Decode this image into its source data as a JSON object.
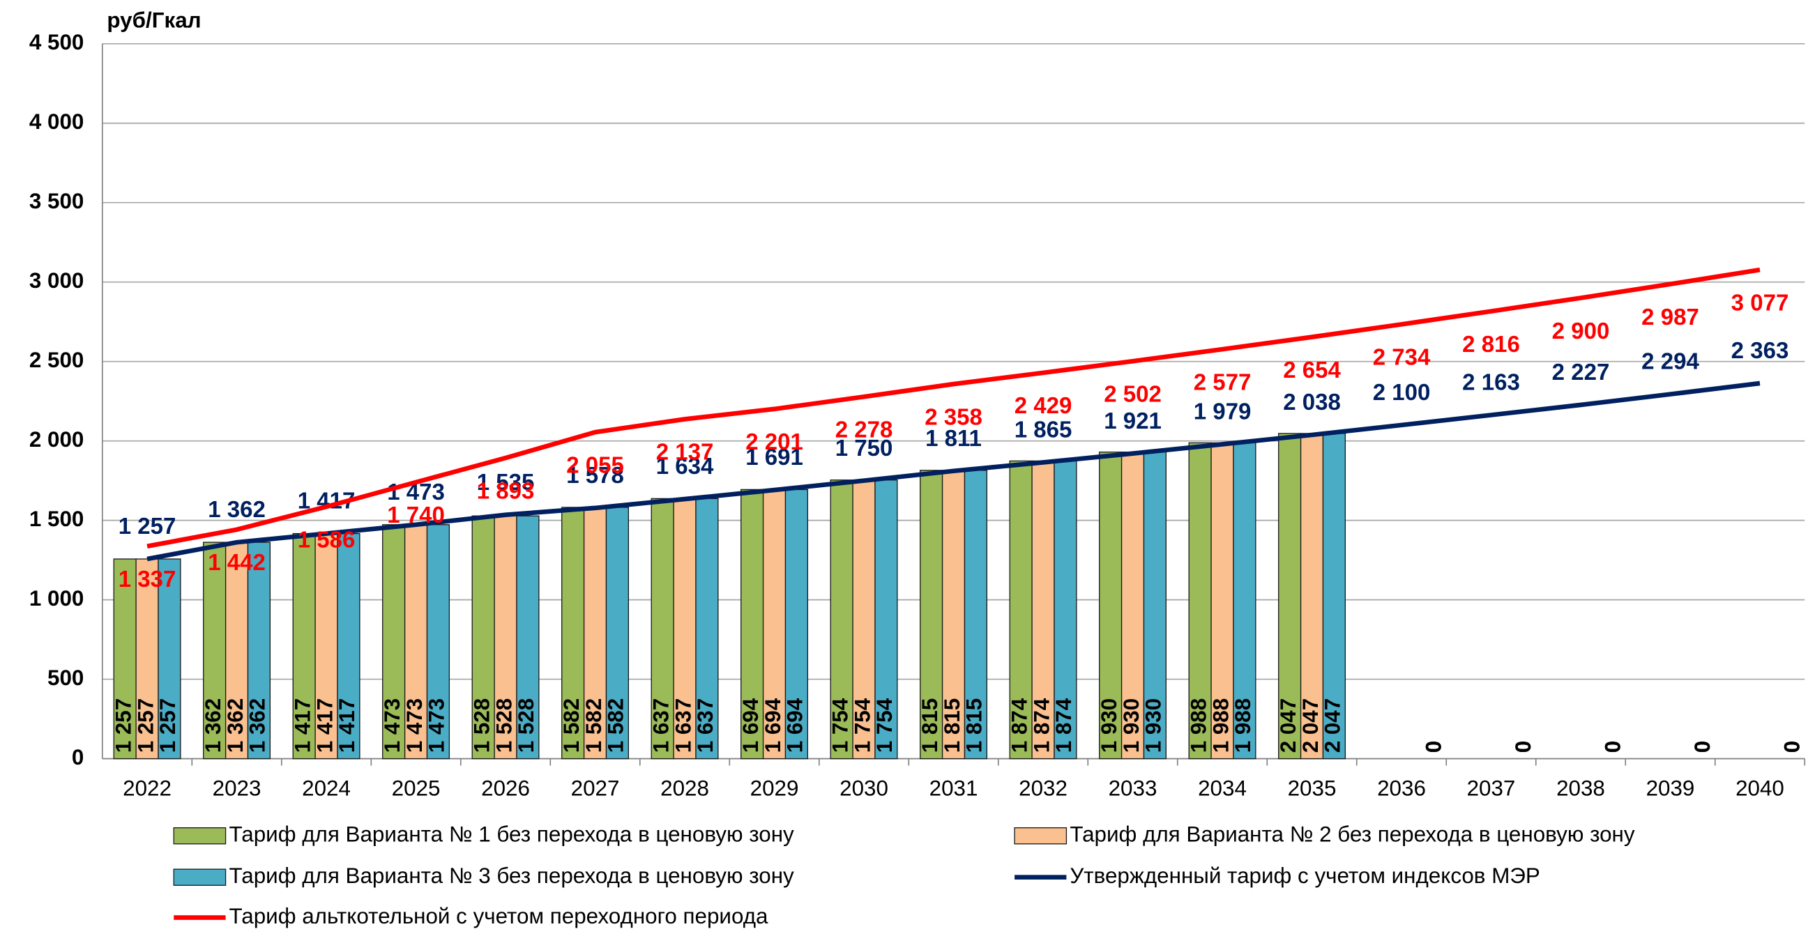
{
  "chart_data": {
    "type": "bar_line",
    "y_axis_label": "руб/Гкал",
    "categories": [
      "2022",
      "2023",
      "2024",
      "2025",
      "2026",
      "2027",
      "2028",
      "2029",
      "2030",
      "2031",
      "2032",
      "2033",
      "2034",
      "2035",
      "2036",
      "2037",
      "2038",
      "2039",
      "2040"
    ],
    "ylim": [
      0,
      4500
    ],
    "yticks": [
      0,
      500,
      {
        "value": 1000,
        "label": "1 000"
      },
      {
        "value": 1500,
        "label": "1 500"
      },
      {
        "value": 2000,
        "label": "2 000"
      },
      {
        "value": 2500,
        "label": "2 500"
      },
      {
        "value": 3000,
        "label": "3 000"
      },
      {
        "value": 3500,
        "label": "3 500"
      },
      {
        "value": 4000,
        "label": "4 000"
      },
      {
        "value": 4500,
        "label": "4 500"
      }
    ],
    "grid": true,
    "series": [
      {
        "name": "Тариф для  Варианта № 1 без перехода в ценовую зону",
        "kind": "bar",
        "color": "#9bbb59",
        "values": [
          1257,
          1362,
          1417,
          1473,
          1528,
          1582,
          1637,
          1694,
          1754,
          1815,
          1874,
          1930,
          1988,
          2047,
          0,
          0,
          0,
          0,
          0
        ],
        "value_labels": [
          "1 257",
          "1 362",
          "1 417",
          "1 473",
          "1 528",
          "1 582",
          "1 637",
          "1 694",
          "1 754",
          "1 815",
          "1 874",
          "1 930",
          "1 988",
          "2 047",
          "0",
          "0",
          "0",
          "0",
          "0"
        ]
      },
      {
        "name": "Тариф для  Варианта № 2 без перехода в ценовую зону",
        "kind": "bar",
        "color": "#fac090",
        "values": [
          1257,
          1362,
          1417,
          1473,
          1528,
          1582,
          1637,
          1694,
          1754,
          1815,
          1874,
          1930,
          1988,
          2047,
          0,
          0,
          0,
          0,
          0
        ],
        "value_labels": [
          "1 257",
          "1 362",
          "1 417",
          "1 473",
          "1 528",
          "1 582",
          "1 637",
          "1 694",
          "1 754",
          "1 815",
          "1 874",
          "1 930",
          "1 988",
          "2 047",
          "0",
          "0",
          "0",
          "0",
          "0"
        ]
      },
      {
        "name": "Тариф для  Варианта № 3 без перехода в ценовую зону",
        "kind": "bar",
        "color": "#4bacc6",
        "values": [
          1257,
          1362,
          1417,
          1473,
          1528,
          1582,
          1637,
          1694,
          1754,
          1815,
          1874,
          1930,
          1988,
          2047,
          0,
          0,
          0,
          0,
          0
        ],
        "value_labels": [
          "1 257",
          "1 362",
          "1 417",
          "1 473",
          "1 528",
          "1 582",
          "1 637",
          "1 694",
          "1 754",
          "1 815",
          "1 874",
          "1 930",
          "1 988",
          "2 047",
          "0",
          "0",
          "0",
          "0",
          "0"
        ]
      },
      {
        "name": "Утвержденный тариф с учетом индексов МЭР",
        "kind": "line",
        "color": "#002060",
        "values": [
          1257,
          1362,
          1417,
          1473,
          1535,
          1578,
          1634,
          1691,
          1750,
          1811,
          1865,
          1921,
          1979,
          2038,
          2100,
          2163,
          2227,
          2294,
          2363
        ],
        "value_labels": [
          "1 257",
          "1 362",
          "1 417",
          "1 473",
          "1 535",
          "1 578",
          "1 634",
          "1 691",
          "1 750",
          "1 811",
          "1 865",
          "1 921",
          "1 979",
          "2 038",
          "2 100",
          "2 163",
          "2 227",
          "2 294",
          "2 363"
        ]
      },
      {
        "name": "Тариф альткотельной с учетом переходного периода",
        "kind": "line",
        "color": "#ff0000",
        "values": [
          1337,
          1442,
          1586,
          1740,
          1893,
          2055,
          2137,
          2201,
          2278,
          2358,
          2429,
          2502,
          2577,
          2654,
          2734,
          2816,
          2900,
          2987,
          3077
        ],
        "value_labels": [
          "1 337",
          "1 442",
          "1 586",
          "1 740",
          "1 893",
          "2 055",
          "2 137",
          "2 201",
          "2 278",
          "2 358",
          "2 429",
          "2 502",
          "2 577",
          "2 654",
          "2 734",
          "2 816",
          "2 900",
          "2 987",
          "3 077"
        ]
      }
    ]
  }
}
